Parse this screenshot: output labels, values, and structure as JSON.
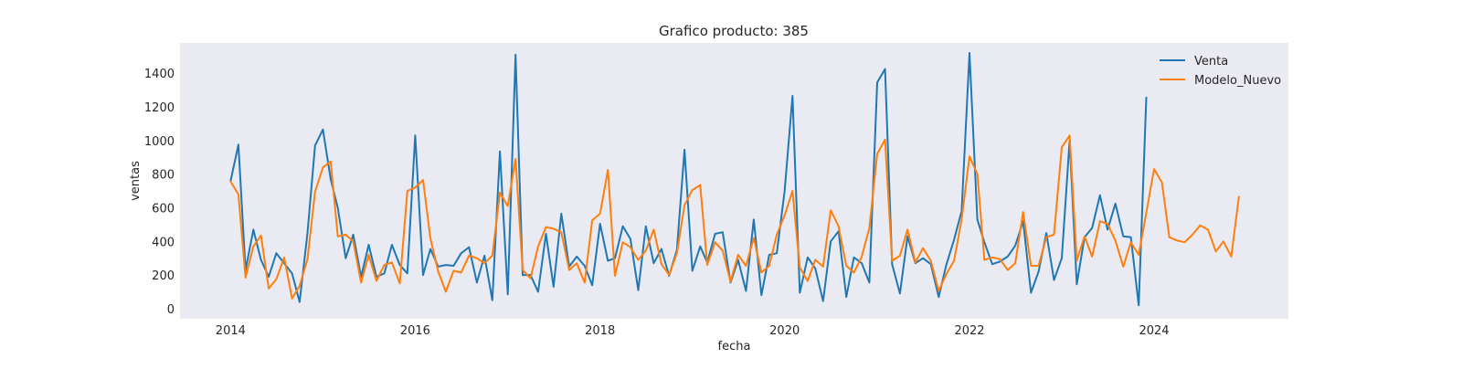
{
  "chart_data": {
    "type": "line",
    "title": "Grafico producto: 385",
    "xlabel": "fecha",
    "ylabel": "ventas",
    "xlim": [
      "2013-06-15",
      "2025-06-15"
    ],
    "ylim": [
      -60,
      1580
    ],
    "x_ticks": [
      "2014",
      "2016",
      "2018",
      "2020",
      "2022",
      "2024"
    ],
    "y_ticks": [
      0,
      200,
      400,
      600,
      800,
      1000,
      1200,
      1400
    ],
    "grid": false,
    "background": "#eaeaf2",
    "legend": "top-right",
    "series": [
      {
        "name": "Venta",
        "color": "#1f77b4",
        "dates": [
          "2014-01",
          "2014-02",
          "2014-03",
          "2014-04",
          "2014-05",
          "2014-06",
          "2014-07",
          "2014-08",
          "2014-09",
          "2014-10",
          "2014-11",
          "2014-12",
          "2015-01",
          "2015-02",
          "2015-03",
          "2015-04",
          "2015-05",
          "2015-06",
          "2015-07",
          "2015-08",
          "2015-09",
          "2015-10",
          "2015-11",
          "2015-12",
          "2016-01",
          "2016-02",
          "2016-03",
          "2016-04",
          "2016-05",
          "2016-06",
          "2016-07",
          "2016-08",
          "2016-09",
          "2016-10",
          "2016-11",
          "2016-12",
          "2017-01",
          "2017-02",
          "2017-03",
          "2017-04",
          "2017-05",
          "2017-06",
          "2017-07",
          "2017-08",
          "2017-09",
          "2017-10",
          "2017-11",
          "2017-12",
          "2018-01",
          "2018-02",
          "2018-03",
          "2018-04",
          "2018-05",
          "2018-06",
          "2018-07",
          "2018-08",
          "2018-09",
          "2018-10",
          "2018-11",
          "2018-12",
          "2019-01",
          "2019-02",
          "2019-03",
          "2019-04",
          "2019-05",
          "2019-06",
          "2019-07",
          "2019-08",
          "2019-09",
          "2019-10",
          "2019-11",
          "2019-12",
          "2020-01",
          "2020-02",
          "2020-03",
          "2020-04",
          "2020-05",
          "2020-06",
          "2020-07",
          "2020-08",
          "2020-09",
          "2020-10",
          "2020-11",
          "2020-12",
          "2021-01",
          "2021-02",
          "2021-03",
          "2021-04",
          "2021-05",
          "2021-06",
          "2021-07",
          "2021-08",
          "2021-09",
          "2021-10",
          "2021-11",
          "2021-12",
          "2022-01",
          "2022-02",
          "2022-03",
          "2022-04",
          "2022-05",
          "2022-06",
          "2022-07",
          "2022-08",
          "2022-09",
          "2022-10",
          "2022-11",
          "2022-12",
          "2023-01",
          "2023-02",
          "2023-03",
          "2023-04",
          "2023-05",
          "2023-06",
          "2023-07",
          "2023-08",
          "2023-09",
          "2023-10",
          "2023-11",
          "2023-12"
        ],
        "values": [
          760,
          975,
          230,
          470,
          290,
          190,
          330,
          270,
          210,
          40,
          450,
          970,
          1065,
          770,
          600,
          300,
          440,
          190,
          380,
          190,
          210,
          380,
          260,
          210,
          1030,
          200,
          355,
          250,
          260,
          255,
          330,
          365,
          155,
          315,
          50,
          935,
          85,
          1510,
          200,
          200,
          100,
          445,
          130,
          565,
          250,
          310,
          255,
          140,
          505,
          285,
          300,
          490,
          415,
          110,
          490,
          270,
          355,
          195,
          350,
          945,
          225,
          370,
          275,
          445,
          455,
          155,
          290,
          105,
          530,
          80,
          320,
          330,
          700,
          1265,
          95,
          305,
          240,
          45,
          400,
          460,
          70,
          305,
          270,
          155,
          1345,
          1425,
          265,
          90,
          430,
          270,
          300,
          265,
          70,
          260,
          410,
          580,
          1520,
          530,
          395,
          265,
          280,
          310,
          375,
          520,
          95,
          220,
          450,
          170,
          300,
          1000,
          145,
          425,
          480,
          675,
          470,
          625,
          430,
          425,
          20,
          1255
        ]
      },
      {
        "name": "Modelo_Nuevo",
        "color": "#ff7f0e",
        "dates": [
          "2014-01",
          "2014-02",
          "2014-03",
          "2014-04",
          "2014-05",
          "2014-06",
          "2014-07",
          "2014-08",
          "2014-09",
          "2014-10",
          "2014-11",
          "2014-12",
          "2015-01",
          "2015-02",
          "2015-03",
          "2015-04",
          "2015-05",
          "2015-06",
          "2015-07",
          "2015-08",
          "2015-09",
          "2015-10",
          "2015-11",
          "2015-12",
          "2016-01",
          "2016-02",
          "2016-03",
          "2016-04",
          "2016-05",
          "2016-06",
          "2016-07",
          "2016-08",
          "2016-09",
          "2016-10",
          "2016-11",
          "2016-12",
          "2017-01",
          "2017-02",
          "2017-03",
          "2017-04",
          "2017-05",
          "2017-06",
          "2017-07",
          "2017-08",
          "2017-09",
          "2017-10",
          "2017-11",
          "2017-12",
          "2018-01",
          "2018-02",
          "2018-03",
          "2018-04",
          "2018-05",
          "2018-06",
          "2018-07",
          "2018-08",
          "2018-09",
          "2018-10",
          "2018-11",
          "2018-12",
          "2019-01",
          "2019-02",
          "2019-03",
          "2019-04",
          "2019-05",
          "2019-06",
          "2019-07",
          "2019-08",
          "2019-09",
          "2019-10",
          "2019-11",
          "2019-12",
          "2020-01",
          "2020-02",
          "2020-03",
          "2020-04",
          "2020-05",
          "2020-06",
          "2020-07",
          "2020-08",
          "2020-09",
          "2020-10",
          "2020-11",
          "2020-12",
          "2021-01",
          "2021-02",
          "2021-03",
          "2021-04",
          "2021-05",
          "2021-06",
          "2021-07",
          "2021-08",
          "2021-09",
          "2021-10",
          "2021-11",
          "2021-12",
          "2022-01",
          "2022-02",
          "2022-03",
          "2022-04",
          "2022-05",
          "2022-06",
          "2022-07",
          "2022-08",
          "2022-09",
          "2022-10",
          "2022-11",
          "2022-12",
          "2023-01",
          "2023-02",
          "2023-03",
          "2023-04",
          "2023-05",
          "2023-06",
          "2023-07",
          "2023-08",
          "2023-09",
          "2023-10",
          "2023-11",
          "2023-12",
          "2024-01",
          "2024-02",
          "2024-03",
          "2024-04",
          "2024-05",
          "2024-06",
          "2024-07",
          "2024-08",
          "2024-09",
          "2024-10",
          "2024-11",
          "2024-12"
        ],
        "values": [
          755,
          680,
          185,
          370,
          435,
          120,
          175,
          305,
          60,
          135,
          295,
          695,
          840,
          875,
          430,
          440,
          400,
          155,
          320,
          165,
          260,
          275,
          150,
          700,
          720,
          765,
          420,
          220,
          100,
          225,
          215,
          315,
          300,
          270,
          315,
          690,
          610,
          890,
          230,
          180,
          370,
          485,
          475,
          455,
          230,
          270,
          155,
          525,
          565,
          825,
          195,
          395,
          365,
          290,
          345,
          470,
          265,
          200,
          330,
          615,
          705,
          735,
          260,
          395,
          345,
          160,
          320,
          255,
          420,
          215,
          255,
          440,
          555,
          700,
          245,
          165,
          290,
          250,
          585,
          490,
          255,
          215,
          310,
          480,
          920,
          1005,
          285,
          315,
          470,
          275,
          360,
          285,
          105,
          205,
          285,
          530,
          905,
          800,
          290,
          305,
          295,
          230,
          270,
          575,
          255,
          255,
          425,
          440,
          960,
          1030,
          285,
          430,
          310,
          520,
          505,
          405,
          250,
          395,
          320,
          570,
          830,
          750,
          425,
          405,
          395,
          440,
          495,
          470,
          340,
          400,
          310,
          665
        ]
      }
    ]
  }
}
